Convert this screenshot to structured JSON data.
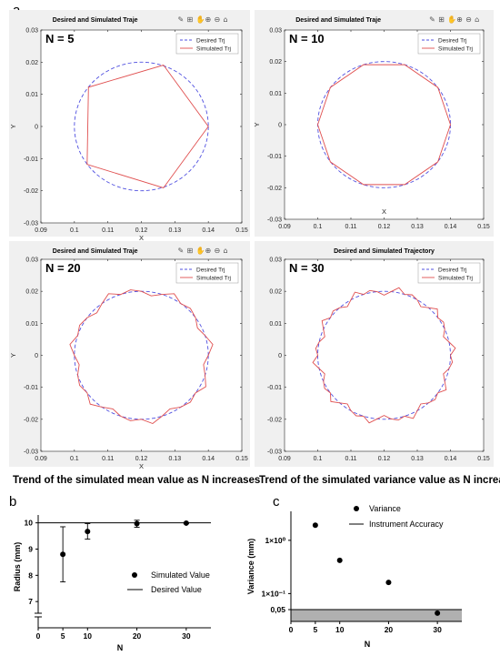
{
  "panel_a": {
    "letter": "a",
    "captions": {
      "left": "Trend of the simulated mean value as N increases",
      "right": "Trend of the simulated variance value as N increases"
    }
  },
  "chart_data": [
    {
      "type": "line",
      "title": "Desired and Simulated Traje",
      "n_label": "N = 5",
      "xlabel": "X",
      "ylabel": "Y",
      "xlim": [
        0.09,
        0.15
      ],
      "ylim": [
        -0.03,
        0.03
      ],
      "xticks": [
        "0.09",
        "0.1",
        "0.11",
        "0.12",
        "0.13",
        "0.14",
        "0.15"
      ],
      "yticks": [
        "0.03",
        "0.02",
        "0.01",
        "0",
        "-0.01",
        "-0.02",
        "-0.03"
      ],
      "legend": [
        "Desired Trj",
        "Simulated Trj"
      ],
      "series": [
        {
          "name": "Desired Trj",
          "style": "dashed",
          "color": "#5050e0",
          "center": [
            0.12,
            0.0
          ],
          "radius": 0.02
        },
        {
          "name": "Simulated Trj",
          "style": "solid",
          "color": "#e05050",
          "x": [
            0.14,
            0.1266,
            0.1042,
            0.1038,
            0.1266,
            0.14
          ],
          "y": [
            0.0,
            0.0191,
            0.0122,
            -0.0118,
            -0.0191,
            0.0
          ]
        }
      ]
    },
    {
      "type": "line",
      "title": "Desired and Simulated Traje",
      "n_label": "N = 10",
      "xlabel": "X",
      "ylabel": "Y",
      "xlim": [
        0.09,
        0.15
      ],
      "ylim": [
        -0.03,
        0.03
      ],
      "xticks": [
        "0.09",
        "0.1",
        "0.11",
        "0.12",
        "0.13",
        "0.14",
        "0.15"
      ],
      "yticks": [
        "0.03",
        "0.02",
        "0.01",
        "0",
        "-0.01",
        "-0.02",
        "-0.03"
      ],
      "legend": [
        "Desired Trj",
        "Simulated Trj"
      ],
      "series": [
        {
          "name": "Desired Trj",
          "style": "dashed",
          "color": "#5050e0",
          "center": [
            0.12,
            0.0
          ],
          "radius": 0.02
        },
        {
          "name": "Simulated Trj",
          "style": "solid",
          "color": "#e05050",
          "x": [
            0.14,
            0.1362,
            0.1262,
            0.1138,
            0.1038,
            0.1,
            0.1038,
            0.1138,
            0.1262,
            0.1362,
            0.14
          ],
          "y": [
            0.0,
            0.0118,
            0.019,
            0.019,
            0.0118,
            0.0,
            -0.0118,
            -0.019,
            -0.019,
            -0.0118,
            0.0
          ]
        }
      ]
    },
    {
      "type": "line",
      "title": "Desired and Simulated Traje",
      "n_label": "N = 20",
      "xlabel": "X",
      "ylabel": "Y",
      "xlim": [
        0.09,
        0.15
      ],
      "ylim": [
        -0.03,
        0.03
      ],
      "xticks": [
        "0.09",
        "0.1",
        "0.11",
        "0.12",
        "0.13",
        "0.14",
        "0.15"
      ],
      "yticks": [
        "0.03",
        "0.02",
        "0.01",
        "0",
        "-0.01",
        "-0.02",
        "-0.03"
      ],
      "legend": [
        "Desired Trj",
        "Simulated Trj"
      ],
      "series": [
        {
          "name": "Desired Trj",
          "style": "dashed",
          "color": "#5050e0",
          "center": [
            0.12,
            0.0
          ],
          "radius": 0.02
        },
        {
          "name": "Simulated Trj",
          "style": "solid",
          "color": "#e05050",
          "polygon_sides": 20,
          "center": [
            0.12,
            0.0
          ],
          "radius": 0.02
        }
      ]
    },
    {
      "type": "line",
      "title": "Desired and Simulated Trajectory",
      "n_label": "N = 30",
      "xlabel": "",
      "ylabel": "",
      "xlim": [
        0.09,
        0.15
      ],
      "ylim": [
        -0.03,
        0.03
      ],
      "xticks": [
        "0.09",
        "0.1",
        "0.11",
        "0.12",
        "0.13",
        "0.14",
        "0.15"
      ],
      "yticks": [
        "0.03",
        "0.02",
        "0.01",
        "0",
        "-0.01",
        "-0.02",
        "-0.03"
      ],
      "legend": [
        "Desired Trj",
        "Simulated Trj"
      ],
      "series": [
        {
          "name": "Desired Trj",
          "style": "dashed",
          "color": "#5050e0",
          "center": [
            0.12,
            0.0
          ],
          "radius": 0.02
        },
        {
          "name": "Simulated Trj",
          "style": "solid",
          "color": "#e05050",
          "polygon_sides": 30,
          "center": [
            0.12,
            0.0
          ],
          "radius": 0.02
        }
      ]
    },
    {
      "type": "scatter",
      "letter": "b",
      "xlabel": "N",
      "ylabel": "Radius (mm)",
      "xticks": [
        "0",
        "5",
        "10",
        "20",
        "30"
      ],
      "yticks": [
        "10",
        "9",
        "8",
        "7"
      ],
      "xlim": [
        0,
        35
      ],
      "ylim": [
        6.0,
        10.3
      ],
      "legend": [
        "Simulated Value",
        "Desired Value"
      ],
      "series": [
        {
          "name": "Simulated Value",
          "x": [
            5,
            10,
            20,
            30
          ],
          "y": [
            8.8,
            9.67,
            9.97,
            9.99
          ],
          "err_low": [
            7.75,
            9.38,
            9.83,
            9.97
          ],
          "err_high": [
            9.85,
            9.97,
            10.1,
            10.01
          ]
        },
        {
          "name": "Desired Value",
          "y": 10
        }
      ]
    },
    {
      "type": "scatter",
      "letter": "c",
      "xlabel": "N",
      "ylabel": "Variance (mm)",
      "xticks": [
        "0",
        "5",
        "10",
        "20",
        "30"
      ],
      "yticks": [
        "1×10⁰",
        "1×10⁻¹",
        "0,05"
      ],
      "xlim": [
        0,
        35
      ],
      "log_scale": true,
      "legend": [
        "Variance",
        "Instrument Accuracy"
      ],
      "series": [
        {
          "name": "Variance",
          "x": [
            5,
            10,
            20,
            30
          ],
          "y": [
            1.92,
            0.42,
            0.162,
            0.043
          ]
        },
        {
          "name": "Instrument Accuracy",
          "y": 0.05,
          "fill_below": true,
          "fill_color": "#b0b0b0"
        }
      ]
    }
  ]
}
